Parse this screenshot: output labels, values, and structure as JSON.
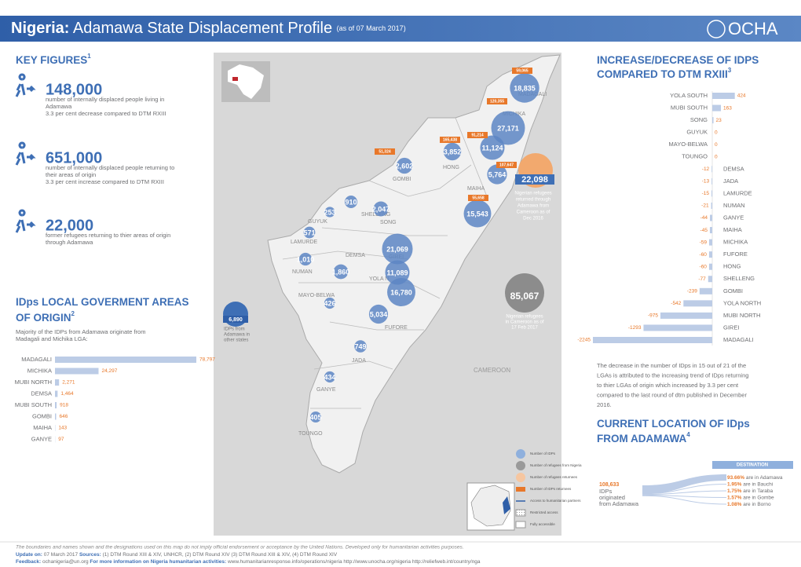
{
  "header": {
    "country": "Nigeria:",
    "title": "Adamawa State Displacement Profile",
    "date": "(as of 07 March 2017)",
    "logo": "OCHA"
  },
  "key_figures": {
    "title": "KEY FIGURES",
    "note": "1",
    "items": [
      {
        "value": "148,000",
        "lines": [
          "number of internally displaced people living in",
          "Adamawa",
          "3.3 per cent decrease compared to DTM RXIII"
        ]
      },
      {
        "value": "651,000",
        "lines": [
          "number of internally displaced people returning to",
          "their areas of origin",
          "3.3 per cent increase compared to DTM RXIII"
        ]
      },
      {
        "value": "22,000",
        "lines": [
          "former refugees returning to thier areas of origin",
          "through Adamawa"
        ]
      }
    ]
  },
  "origin": {
    "title": [
      "IDps LOCAL GOVERMENT AREAS",
      "OF ORIGIN"
    ],
    "note": "2",
    "text": [
      "Majority of the IDPs from Adamawa originate from",
      "Madagali and Michika LGA:"
    ],
    "categories": [
      "MADAGALI",
      "MICHIKA",
      "MUBI NORTH",
      "DEMSA",
      "MUBI SOUTH",
      "GOMBI",
      "MAIHA",
      "GANYE"
    ],
    "values": [
      78797,
      24297,
      2271,
      1464,
      918,
      646,
      143,
      97
    ],
    "value_labels": [
      "78,797",
      "24,297",
      "2,271",
      "1,464",
      "918",
      "646",
      "143",
      "97"
    ]
  },
  "change": {
    "title": [
      "INCREASE/DECREASE OF IDPS",
      "COMPARED TO DTM RXIII"
    ],
    "note": "3",
    "categories": [
      "YOLA SOUTH",
      "MUBI SOUTH",
      "SONG",
      "GUYUK",
      "MAYO-BELWA",
      "TOUNGO",
      "DEMSA",
      "JADA",
      "LAMURDE",
      "NUMAN",
      "GANYE",
      "MAIHA",
      "MICHIKA",
      "FUFORE",
      "HONG",
      "SHELLENG",
      "GOMBI",
      "YOLA NORTH",
      "MUBI NORTH",
      "GIREI",
      "MADAGALI"
    ],
    "values": [
      424,
      163,
      23,
      0,
      0,
      0,
      -12,
      -13,
      -15,
      -21,
      -44,
      -45,
      -59,
      -60,
      -60,
      -77,
      -239,
      -542,
      -975,
      -1293,
      -2245
    ],
    "text": [
      "The decrease in the number of IDps in 15 out of 21 of the",
      "LGAs is attributed to the increasing trend of IDps returning",
      "to thier LGAs of origin which increased by 3.3 per cent",
      "compared to the last round of dtm published in December",
      "2016."
    ]
  },
  "map": {
    "lgas": [
      "MADAGALI",
      "MICHIKA",
      "HONG",
      "GOMBI",
      "MAIHA",
      "SHELLENG",
      "GUYUK",
      "SONG",
      "LAMURDE",
      "DEMSA",
      "GIREI",
      "NUMAN",
      "YOLA N",
      "MAYO-BELWA",
      "FUFORE",
      "JADA",
      "GANYE",
      "TOUNGO"
    ],
    "country": "CAMEROON",
    "idps": {
      "values": [
        18835,
        27171,
        11124,
        3852,
        2602,
        5764,
        15543,
        2047,
        910,
        253,
        571,
        21069,
        1010,
        1860,
        11089,
        16780,
        426,
        5034,
        749,
        434,
        405
      ],
      "value_labels": [
        "18,835",
        "27,171",
        "11,124",
        "3,852",
        "2,602",
        "5,764",
        "15,543",
        "2,047",
        "910",
        "253",
        "571",
        "21,069",
        "1,010",
        "1,860",
        "11,089",
        "16,780",
        "426",
        "5,034",
        "749",
        "434",
        "405"
      ]
    },
    "returnees": [
      "59,065",
      "120,355",
      "91,214",
      "165,438",
      "51,324",
      "107,647",
      "55,658"
    ],
    "refugees_returned": {
      "value": "22,098",
      "lines": [
        "Nigerian refugees",
        "returned through",
        "Adamawa from",
        "Cameroon as of",
        "Dec 2016"
      ]
    },
    "refugees_cameroon": {
      "value": "85,067",
      "lines": [
        "Nigerian refugees",
        "in Cameroon as of",
        "17 Feb 2017"
      ]
    },
    "other_states": {
      "value": "6,890",
      "lines": [
        "IDPs from",
        "Adamawa in",
        "other states"
      ]
    },
    "legend": [
      "Number of IDPs",
      "Number of refugees from Nigeria",
      "Number of refugees returnees",
      "Number of IDPs returnees",
      "Access to humanitarian partners",
      "Restricted access",
      "Fully accessible"
    ]
  },
  "location": {
    "title": [
      "CURRENT LOCATION OF IDps",
      "FROM ADAMAWA"
    ],
    "note": "4",
    "header": "DESTINATION",
    "total": "108,633",
    "total_lines": [
      "IDPs",
      "originated",
      "from Adamawa"
    ],
    "destinations": [
      {
        "share": "93.66%",
        "place": "are in Adamawa"
      },
      {
        "share": "1.95%",
        "place": "are in Bauchi"
      },
      {
        "share": "1.75%",
        "place": "are in Taraba"
      },
      {
        "share": "1.57%",
        "place": "are in Gombe"
      },
      {
        "share": "1.08%",
        "place": "are in Borno"
      }
    ]
  },
  "footer": {
    "disclaimer": "The boundaries and names shown and the designations used on this map do not imply official endorsement or acceptance by the United Nations. Developed only for humanitarian activities purposes.",
    "update_label": "Update on:",
    "update": "07 March 2017",
    "sources_label": "Sources:",
    "sources": "(1) DTM Round XIII & XIV, UNHCR, (2) DTM Round XIV (3) DTM Round XIII & XIV, (4) DTM Round XIV",
    "feedback_label": "Feedback:",
    "feedback": "ochanigeria@un.org",
    "more_label": "For more information on Nigeria humanitarian activities:",
    "links": "www.humanitarianresponse.info/operations/nigeria  http://www.unocha.org/nigeria  http://reliefweb.int/country/nga"
  }
}
